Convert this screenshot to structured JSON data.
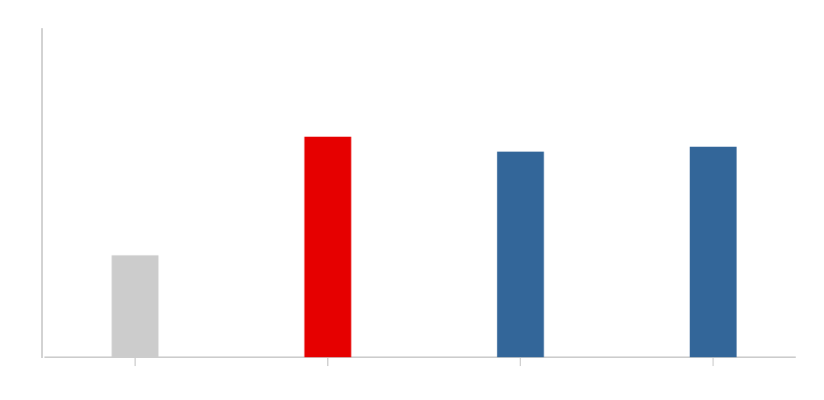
{
  "chart_data": {
    "type": "bar",
    "categories": [
      null,
      null,
      null,
      null
    ],
    "values": [
      31,
      67,
      62.5,
      64
    ],
    "colors": [
      "#cccccc",
      "#e60000",
      "#336699",
      "#336699"
    ],
    "ylim": [
      0,
      100
    ]
  }
}
